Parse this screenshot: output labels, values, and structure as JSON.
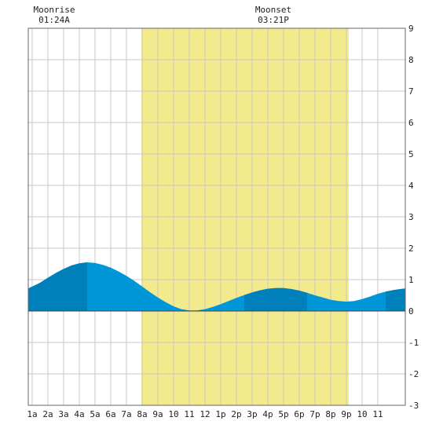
{
  "chart_data": {
    "type": "area",
    "title": "",
    "xlabel": "",
    "ylabel": "",
    "x_ticks": [
      "1a",
      "2a",
      "3a",
      "4a",
      "5a",
      "6a",
      "7a",
      "8a",
      "9a",
      "10",
      "11",
      "12",
      "1p",
      "2p",
      "3p",
      "4p",
      "5p",
      "6p",
      "7p",
      "8p",
      "9p",
      "10",
      "11"
    ],
    "xlim": [
      -0.25,
      23.75
    ],
    "ylim": [
      -3,
      9
    ],
    "y_ticks": [
      "9",
      "8",
      "7",
      "6",
      "5",
      "4",
      "3",
      "2",
      "1",
      "0",
      "-1",
      "-2",
      "-3"
    ],
    "grid": true,
    "daylight": {
      "start": 6.95,
      "end": 20.15,
      "color": "#f2ea8c"
    },
    "series": [
      {
        "x": [
          -0.25,
          0.5,
          1,
          1.5,
          2,
          2.5,
          3,
          3.5,
          4,
          4.5,
          5,
          5.5,
          6,
          6.5,
          7,
          7.5,
          8,
          8.5,
          9,
          9.5,
          10,
          10.5,
          11,
          11.5,
          12,
          12.5,
          13,
          13.5,
          14,
          14.5,
          15,
          15.5,
          16,
          16.5,
          17,
          17.5,
          18,
          18.5,
          19,
          19.5,
          20,
          20.5,
          21,
          21.5,
          22,
          22.5,
          23,
          23.75
        ],
        "y": [
          0.72,
          0.9,
          1.06,
          1.21,
          1.34,
          1.45,
          1.52,
          1.55,
          1.53,
          1.47,
          1.38,
          1.26,
          1.12,
          0.96,
          0.78,
          0.6,
          0.43,
          0.28,
          0.15,
          0.06,
          0.02,
          0.02,
          0.06,
          0.13,
          0.22,
          0.32,
          0.42,
          0.51,
          0.59,
          0.66,
          0.71,
          0.73,
          0.73,
          0.7,
          0.65,
          0.58,
          0.5,
          0.43,
          0.36,
          0.32,
          0.3,
          0.32,
          0.38,
          0.46,
          0.55,
          0.62,
          0.67,
          0.72
        ],
        "color": "#0096d8"
      }
    ],
    "shaded_bands": [
      [
        -0.25,
        3.5
      ],
      [
        13.5,
        17.5
      ],
      [
        22.5,
        23.75
      ]
    ],
    "band_color": "#0080bb",
    "annotations": [
      {
        "label": "Moonrise",
        "time": "01:24A",
        "x": 1.4
      },
      {
        "label": "Moonset",
        "time": "03:21P",
        "x": 15.35
      }
    ]
  }
}
